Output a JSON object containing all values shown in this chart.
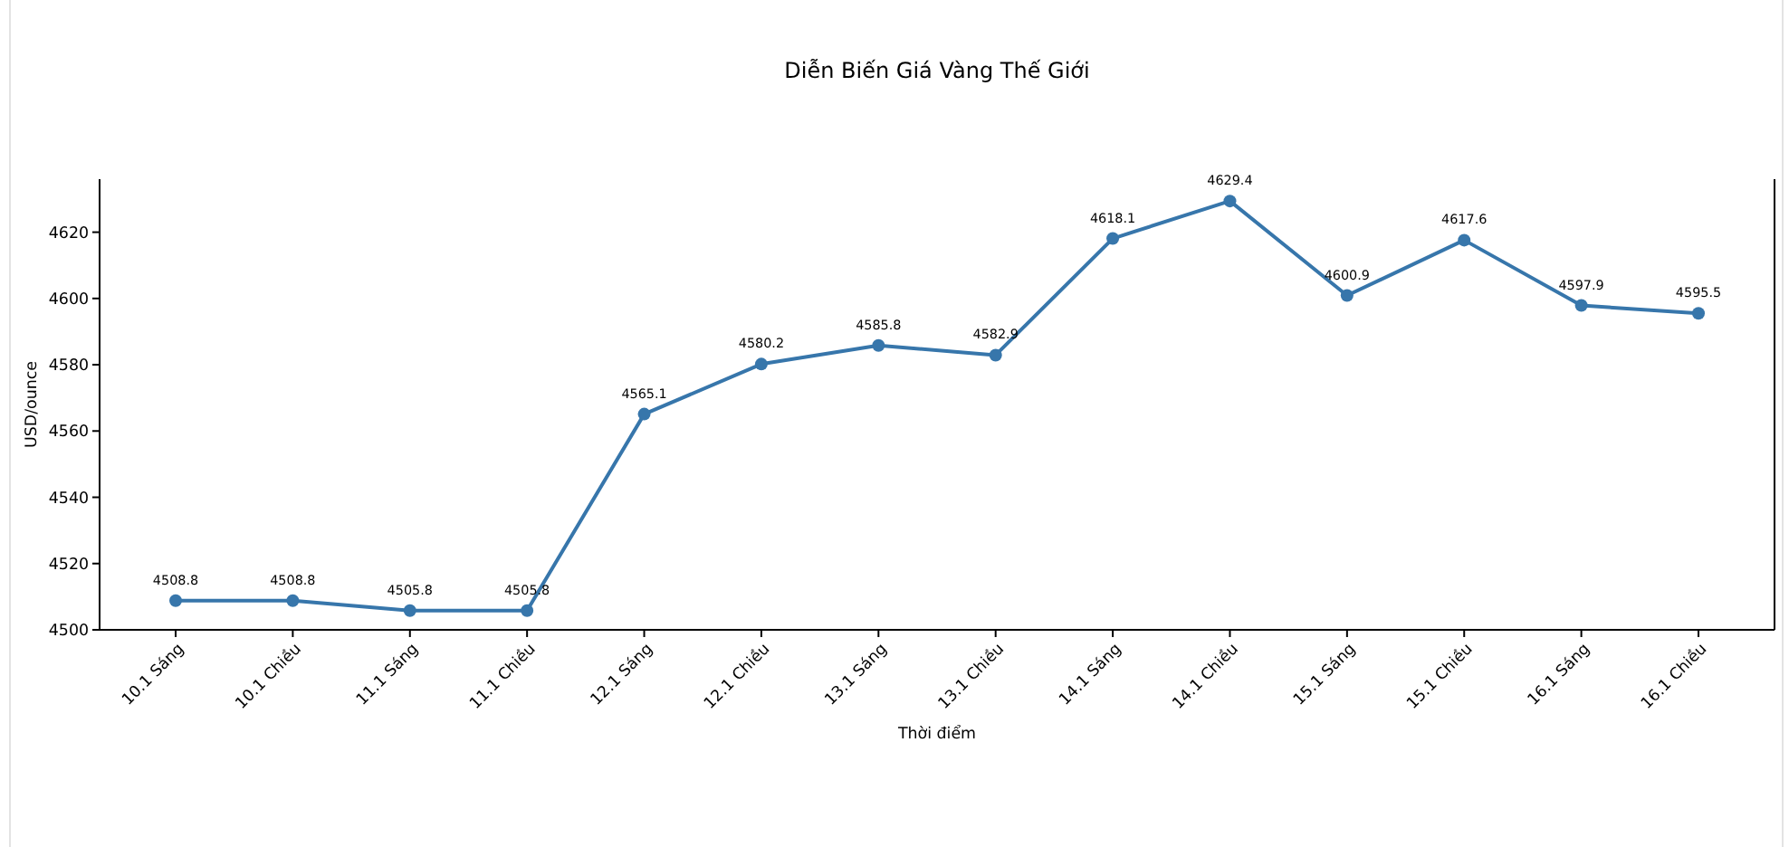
{
  "chart_data": {
    "type": "line",
    "title": "Diễn Biến Giá Vàng Thế Giới",
    "xlabel": "Thời điểm",
    "ylabel": "USD/ounce",
    "categories": [
      "10.1 Sáng",
      "10.1 Chiều",
      "11.1 Sáng",
      "11.1 Chiều",
      "12.1 Sáng",
      "12.1 Chiều",
      "13.1 Sáng",
      "13.1 Chiều",
      "14.1 Sáng",
      "14.1 Chiều",
      "15.1 Sáng",
      "15.1 Chiều",
      "16.1 Sáng",
      "16.1 Chiều"
    ],
    "series": [
      {
        "color": "#3776ab",
        "values": [
          4508.8,
          4508.8,
          4505.8,
          4505.8,
          4565.1,
          4580.2,
          4585.8,
          4582.9,
          4618.1,
          4629.4,
          4600.9,
          4617.6,
          4597.9,
          4595.5
        ]
      }
    ],
    "ylim": [
      4500,
      4636
    ],
    "yticks": [
      4500,
      4520,
      4540,
      4560,
      4580,
      4600,
      4620
    ],
    "grid": false,
    "legend": false,
    "marker": "circle",
    "line_style": "solid",
    "data_labels": true
  }
}
